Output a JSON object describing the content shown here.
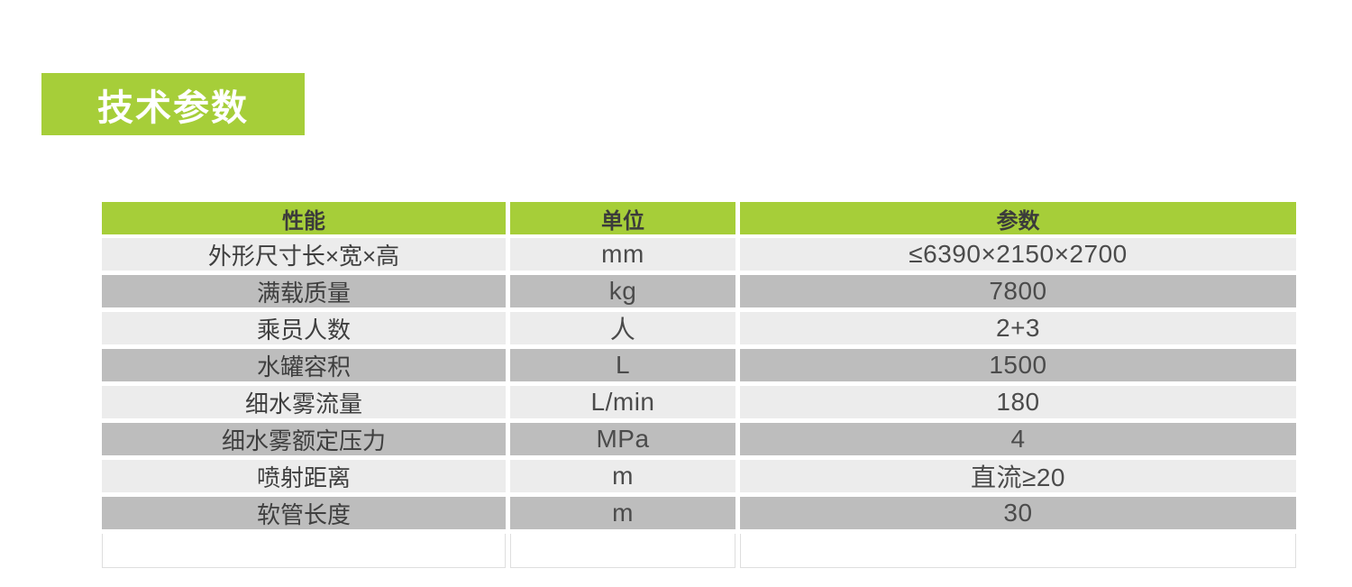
{
  "title": {
    "text": "技术参数"
  },
  "colors": {
    "accent_green": "#a6ce39",
    "row_light": "#ececec",
    "row_dark": "#bdbdbd",
    "header_text": "#3b3b3b",
    "body_text": "#3f3f3f"
  },
  "table": {
    "headers": [
      "性能",
      "单位",
      "参数"
    ],
    "rows": [
      {
        "property": "外形尺寸长×宽×高",
        "unit": "mm",
        "value": "≤6390×2150×2700"
      },
      {
        "property": "满载质量",
        "unit": "kg",
        "value": "7800"
      },
      {
        "property": "乘员人数",
        "unit": "人",
        "value": "2+3"
      },
      {
        "property": "水罐容积",
        "unit": "L",
        "value": "1500"
      },
      {
        "property": "细水雾流量",
        "unit": "L/min",
        "value": "180"
      },
      {
        "property": "细水雾额定压力",
        "unit": "MPa",
        "value": "4"
      },
      {
        "property": "喷射距离",
        "unit": "m",
        "value": "直流≥20"
      },
      {
        "property": "软管长度",
        "unit": "m",
        "value": "30"
      }
    ]
  }
}
